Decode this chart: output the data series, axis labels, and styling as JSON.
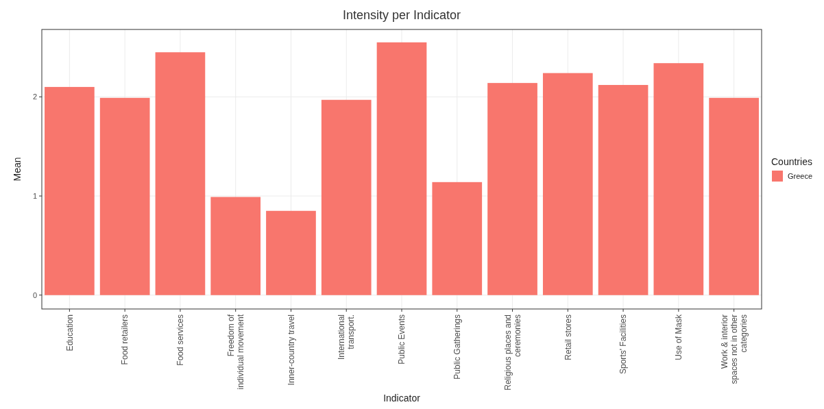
{
  "chart_data": {
    "type": "bar",
    "title": "Intensity per Indicator",
    "xlabel": "Indicator",
    "ylabel": "Mean",
    "legend_title": "Countries",
    "categories": [
      "Education",
      "Food retailers",
      "Food services",
      "Freedom of\nindividual movement",
      "Inner-country travel",
      "International\ntransport.",
      "Public Events",
      "Public Gatherings",
      "Religious places and\nceremonies",
      "Retail stores",
      "Sports' Facilities",
      "Use of Mask",
      "Work & interior\nspaces not in other\ncategories"
    ],
    "series": [
      {
        "name": "Greece",
        "color": "#f8766d",
        "values": [
          2.1,
          1.99,
          2.45,
          0.99,
          0.85,
          1.97,
          2.55,
          1.14,
          2.14,
          2.24,
          2.12,
          2.34,
          1.99
        ]
      }
    ],
    "ylim": [
      -0.14,
      2.68
    ],
    "yticks": [
      0,
      1,
      2
    ],
    "grid": true,
    "legend": "right"
  }
}
